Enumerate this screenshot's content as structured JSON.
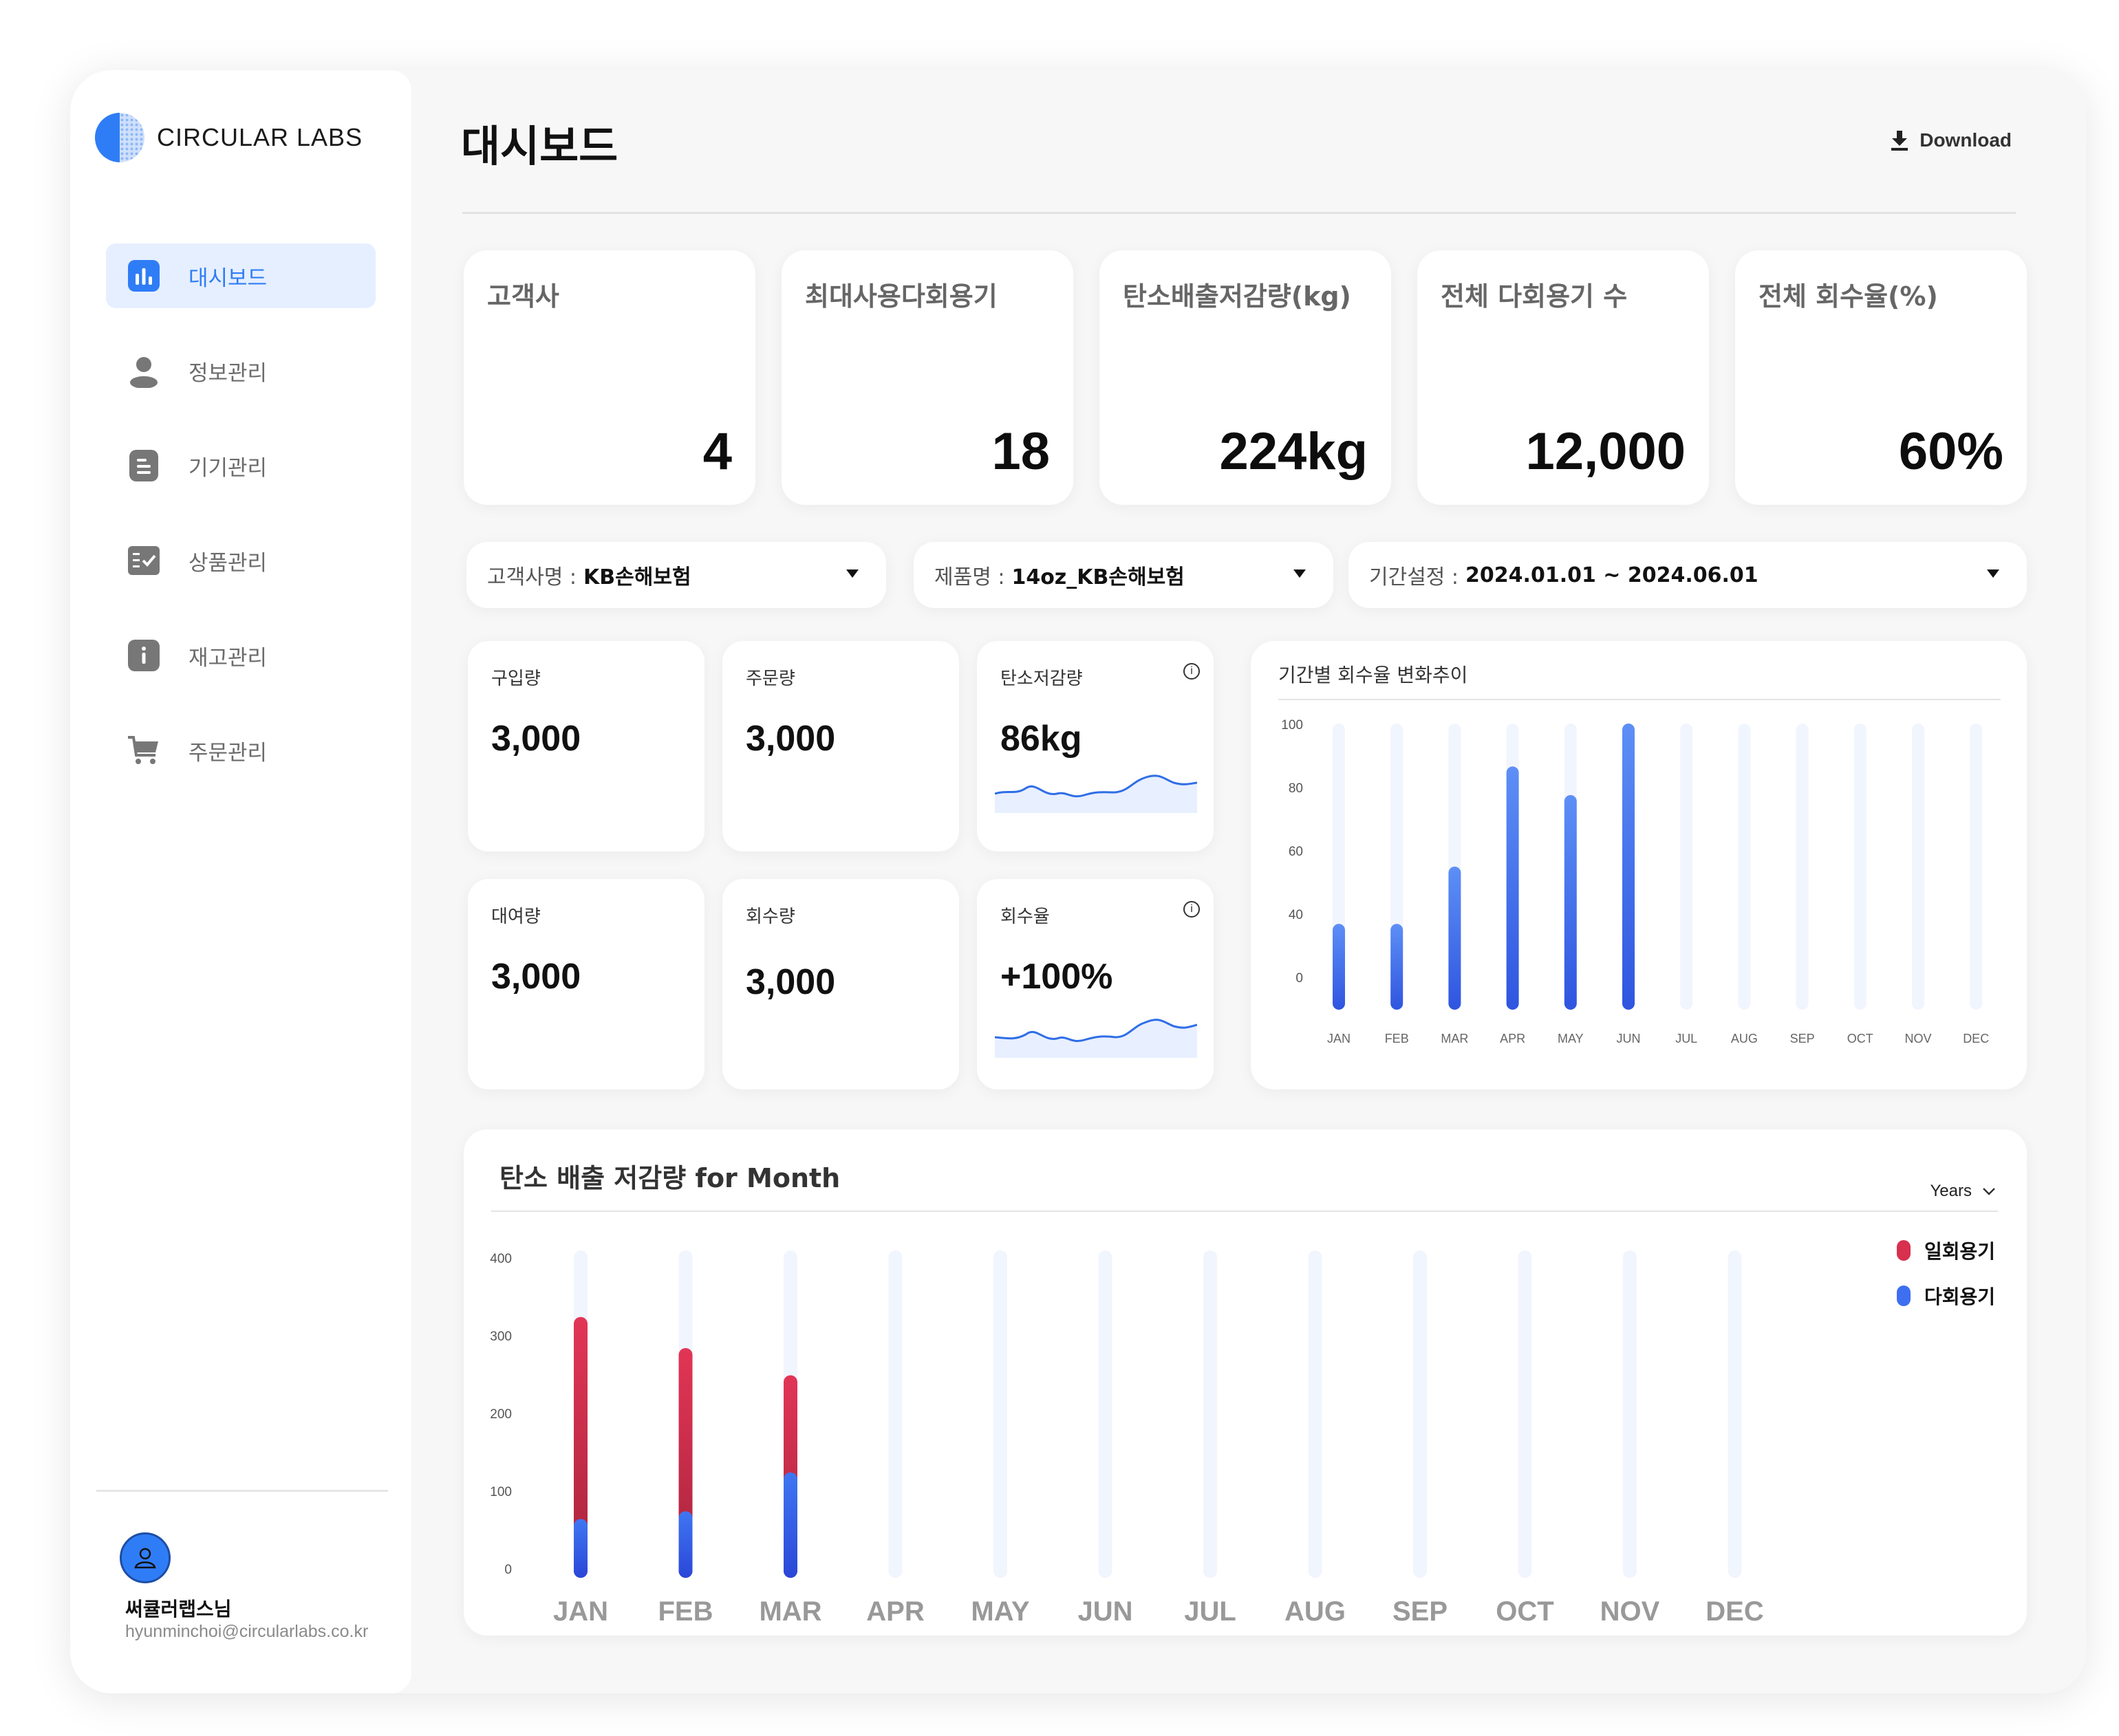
{
  "brand": {
    "name": "CIRCULAR LABS"
  },
  "sidebar": {
    "items": [
      {
        "label": "대시보드",
        "icon": "bar-chart-icon",
        "active": true
      },
      {
        "label": "정보관리",
        "icon": "user-icon",
        "active": false
      },
      {
        "label": "기기관리",
        "icon": "document-icon",
        "active": false
      },
      {
        "label": "상품관리",
        "icon": "checklist-icon",
        "active": false
      },
      {
        "label": "재고관리",
        "icon": "info-icon",
        "active": false
      },
      {
        "label": "주문관리",
        "icon": "cart-icon",
        "active": false
      }
    ],
    "user": {
      "name": "써큘러랩스님",
      "email": "hyunminchoi@circularlabs.co.kr"
    }
  },
  "header": {
    "title": "대시보드",
    "download_label": "Download"
  },
  "kpis": [
    {
      "label": "고객사",
      "value": "4"
    },
    {
      "label": "최대사용다회용기",
      "value": "18"
    },
    {
      "label": "탄소배출저감량(kg)",
      "value": "224kg"
    },
    {
      "label": "전체 다회용기 수",
      "value": "12,000"
    },
    {
      "label": "전체 회수율(%)",
      "value": "60%"
    }
  ],
  "filters": [
    {
      "label": "고객사명 :",
      "value": "KB손해보험"
    },
    {
      "label": "제품명 :",
      "value": "14oz_KB손해보험"
    },
    {
      "label": "기간설정 :",
      "value": "2024.01.01 ~ 2024.06.01"
    }
  ],
  "stats": [
    {
      "label": "구입량",
      "value": "3,000"
    },
    {
      "label": "주문량",
      "value": "3,000"
    },
    {
      "label": "탄소저감량",
      "value": "86kg",
      "info": "i"
    },
    {
      "label": "대여량",
      "value": "3,000"
    },
    {
      "label": "회수량",
      "value": "3,000"
    },
    {
      "label": "회수율",
      "value": "+100%",
      "info": "i"
    }
  ],
  "colors": {
    "accent": "#2f7df6",
    "bar_blue": "#3d6ff0",
    "bar_red": "#d8304f",
    "track": "#f1f5fd"
  },
  "chart_data": [
    {
      "type": "bar",
      "title": "기간별 회수율 변화추이",
      "categories": [
        "JAN",
        "FEB",
        "MAR",
        "APR",
        "MAY",
        "JUN",
        "JUL",
        "AUG",
        "SEP",
        "OCT",
        "NOV",
        "DEC"
      ],
      "values": [
        30,
        30,
        50,
        85,
        75,
        100,
        0,
        0,
        0,
        0,
        0,
        0
      ],
      "yticks": [
        "0",
        "40",
        "60",
        "80",
        "100"
      ],
      "ylim": [
        0,
        100
      ],
      "grid": false
    },
    {
      "type": "bar",
      "title": "탄소 배출 저감량 for Month",
      "period_select": "Years",
      "categories": [
        "JAN",
        "FEB",
        "MAR",
        "APR",
        "MAY",
        "JUN",
        "JUL",
        "AUG",
        "SEP",
        "OCT",
        "NOV",
        "DEC"
      ],
      "stacked": true,
      "series": [
        {
          "name": "다회용기",
          "values": [
            65,
            75,
            125,
            0,
            0,
            0,
            0,
            0,
            0,
            0,
            0,
            0
          ]
        },
        {
          "name": "일회용기",
          "values": [
            260,
            210,
            125,
            0,
            0,
            0,
            0,
            0,
            0,
            0,
            0,
            0
          ]
        }
      ],
      "yticks": [
        "0",
        "100",
        "200",
        "300",
        "400"
      ],
      "ylim": [
        0,
        400
      ],
      "legend": "top-right",
      "grid": false
    }
  ]
}
